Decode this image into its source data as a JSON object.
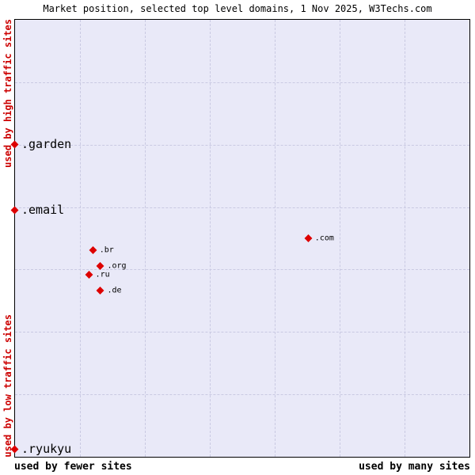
{
  "title": "Market position, selected top level domains, 1 Nov 2025, W3Techs.com",
  "axes": {
    "y_top": "used by high traffic sites",
    "y_bottom": "used by low traffic sites",
    "x_left": "used by fewer sites",
    "x_right": "used by many sites"
  },
  "colors": {
    "marker": "#dd0000",
    "plot_background": "#e9e9f8",
    "grid": "#c9c9e2",
    "y_axis_text": "#cc0000",
    "title_text": "#000000"
  },
  "chart_data": {
    "type": "scatter",
    "title": "Market position, selected top level domains, 1 Nov 2025, W3Techs.com",
    "xlabel_left": "used by fewer sites",
    "xlabel_right": "used by many sites",
    "ylabel_top": "used by high traffic sites",
    "ylabel_bottom": "used by low traffic sites",
    "grid": "dashed",
    "legend": "none",
    "points": [
      {
        "label": ".garden",
        "x_pct": 0.0,
        "y_pct": 28.5,
        "label_size": "large"
      },
      {
        "label": ".email",
        "x_pct": 0.0,
        "y_pct": 43.5,
        "label_size": "large"
      },
      {
        "label": ".com",
        "x_pct": 64.6,
        "y_pct": 50.0,
        "label_size": "small"
      },
      {
        "label": ".br",
        "x_pct": 17.2,
        "y_pct": 52.7,
        "label_size": "small"
      },
      {
        "label": ".org",
        "x_pct": 18.9,
        "y_pct": 56.3,
        "label_size": "small"
      },
      {
        "label": ".ru",
        "x_pct": 16.3,
        "y_pct": 58.3,
        "label_size": "small"
      },
      {
        "label": ".de",
        "x_pct": 18.9,
        "y_pct": 61.9,
        "label_size": "small"
      },
      {
        "label": ".ryukyu",
        "x_pct": 0.0,
        "y_pct": 98.2,
        "label_size": "large"
      }
    ]
  }
}
